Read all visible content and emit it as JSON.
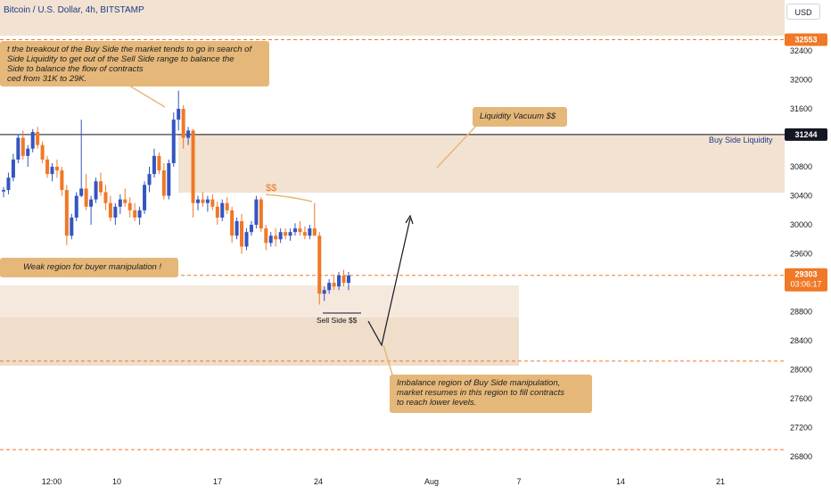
{
  "header": {
    "symbol_title": "Bitcoin / U.S. Dollar, 4h, BITSTAMP",
    "currency_button": "USD"
  },
  "colors": {
    "up": "#3455c0",
    "down": "#f07826",
    "zone": "#e9cfb3",
    "callout": "#e5b87a",
    "dash": "#f07826",
    "price_label": "#f07826",
    "level_label": "#131722"
  },
  "annotations": {
    "top_callout": [
      "t the breakout of the Buy Side the market tends to go in search of",
      "Side Liquidity to get out of the Sell Side range to balance the",
      "Side to balance the flow of contracts",
      "ced from 31K to 29K."
    ],
    "weak_region": "Weak region for buyer manipulation !",
    "liquidity_vacuum": "Liquidity Vacuum $$",
    "buy_side_liquidity": "Buy Side Liquidity",
    "ss_marker": "$$",
    "sell_side": "Sell Side $$",
    "imbalance_callout": [
      "Imbalance region of Buy Side manipulation,",
      "market resumes in this region to fill contracts",
      "to reach lower levels."
    ]
  },
  "price_labels": {
    "top_level": "32553",
    "buy_side_level": "31244",
    "current_price": "29303",
    "countdown": "03:06:17"
  },
  "chart_data": {
    "type": "candlestick",
    "title": "Bitcoin / U.S. Dollar, 4h, BITSTAMP",
    "xlabel": "",
    "ylabel": "",
    "ylim": [
      26680,
      33100
    ],
    "y_ticks": [
      "32400",
      "32000",
      "31600",
      "30800",
      "30400",
      "30000",
      "29600",
      "28800",
      "28400",
      "28000",
      "27600",
      "27200",
      "26800"
    ],
    "x_ticks": [
      "12:00",
      "10",
      "17",
      "24",
      "Aug",
      "7",
      "14",
      "21"
    ],
    "levels": [
      {
        "label": "32553",
        "price": 32553,
        "style": "dashed"
      },
      {
        "label": "31244",
        "price": 31244,
        "style": "solid"
      },
      {
        "label": "29303",
        "price": 29303,
        "style": "dashed"
      },
      {
        "label": "",
        "price": 28120,
        "style": "dashed"
      },
      {
        "label": "",
        "price": 26900,
        "style": "dashed"
      }
    ],
    "candles": [
      [
        30460,
        30520,
        30380,
        30480
      ],
      [
        30480,
        30720,
        30420,
        30650
      ],
      [
        30650,
        30980,
        30600,
        30900
      ],
      [
        30900,
        31250,
        30850,
        31200
      ],
      [
        31200,
        31300,
        30900,
        30950
      ],
      [
        30950,
        31100,
        30800,
        31050
      ],
      [
        31050,
        31320,
        31000,
        31280
      ],
      [
        31280,
        31350,
        31050,
        31100
      ],
      [
        31100,
        31150,
        30850,
        30900
      ],
      [
        30900,
        30950,
        30650,
        30700
      ],
      [
        30700,
        30850,
        30600,
        30800
      ],
      [
        30800,
        30900,
        30650,
        30750
      ],
      [
        30750,
        30800,
        30400,
        30480
      ],
      [
        30480,
        30550,
        29720,
        29850
      ],
      [
        29850,
        30150,
        29800,
        30100
      ],
      [
        30100,
        30450,
        30050,
        30400
      ],
      [
        30400,
        31450,
        30380,
        30500
      ],
      [
        30500,
        30700,
        30200,
        30250
      ],
      [
        30250,
        30400,
        30000,
        30350
      ],
      [
        30350,
        30650,
        30300,
        30600
      ],
      [
        30600,
        30720,
        30400,
        30450
      ],
      [
        30450,
        30550,
        30200,
        30300
      ],
      [
        30300,
        30400,
        30050,
        30100
      ],
      [
        30100,
        30300,
        30000,
        30250
      ],
      [
        30250,
        30420,
        30150,
        30350
      ],
      [
        30350,
        30500,
        30250,
        30300
      ],
      [
        30300,
        30380,
        30100,
        30200
      ],
      [
        30200,
        30300,
        30050,
        30100
      ],
      [
        30100,
        30250,
        30000,
        30200
      ],
      [
        30200,
        30600,
        30150,
        30550
      ],
      [
        30550,
        30800,
        30450,
        30700
      ],
      [
        30700,
        31050,
        30650,
        30950
      ],
      [
        30950,
        31000,
        30700,
        30750
      ],
      [
        30750,
        30850,
        30350,
        30400
      ],
      [
        30400,
        30900,
        30350,
        30850
      ],
      [
        30850,
        31550,
        30800,
        31450
      ],
      [
        31450,
        31850,
        31300,
        31600
      ],
      [
        31600,
        31650,
        31050,
        31200
      ],
      [
        31200,
        31350,
        31100,
        31300
      ],
      [
        31300,
        31320,
        30100,
        30300
      ],
      [
        30300,
        30400,
        30200,
        30350
      ],
      [
        30350,
        30450,
        30250,
        30300
      ],
      [
        30300,
        30400,
        30180,
        30350
      ],
      [
        30350,
        30420,
        30200,
        30250
      ],
      [
        30250,
        30320,
        30000,
        30100
      ],
      [
        30100,
        30350,
        30050,
        30300
      ],
      [
        30300,
        30380,
        30150,
        30200
      ],
      [
        30200,
        30250,
        29750,
        29850
      ],
      [
        29850,
        30100,
        29800,
        30050
      ],
      [
        30050,
        30150,
        29600,
        29700
      ],
      [
        29700,
        29950,
        29650,
        29900
      ],
      [
        29900,
        30050,
        29850,
        30000
      ],
      [
        30000,
        30400,
        29950,
        30350
      ],
      [
        30350,
        30380,
        29900,
        29950
      ],
      [
        29950,
        30000,
        29650,
        29750
      ],
      [
        29750,
        29900,
        29700,
        29850
      ],
      [
        29850,
        29950,
        29700,
        29800
      ],
      [
        29800,
        29950,
        29750,
        29900
      ],
      [
        29900,
        29950,
        29800,
        29850
      ],
      [
        29850,
        29950,
        29780,
        29900
      ],
      [
        29900,
        30020,
        29850,
        29950
      ],
      [
        29950,
        30050,
        29850,
        29900
      ],
      [
        29900,
        29980,
        29800,
        29850
      ],
      [
        29850,
        30000,
        29800,
        29950
      ],
      [
        29950,
        30300,
        29900,
        29850
      ],
      [
        29850,
        29900,
        28900,
        29050
      ],
      [
        29050,
        29150,
        28950,
        29100
      ],
      [
        29100,
        29250,
        29050,
        29200
      ],
      [
        29200,
        29300,
        29100,
        29150
      ],
      [
        29150,
        29350,
        29100,
        29300
      ],
      [
        29300,
        29380,
        29150,
        29200
      ],
      [
        29200,
        29350,
        29100,
        29300
      ]
    ]
  }
}
